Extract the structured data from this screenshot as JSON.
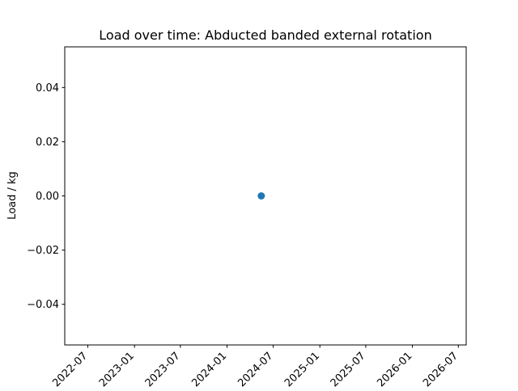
{
  "chart_data": {
    "type": "scatter",
    "title": "Load over time: Abducted banded external rotation",
    "xlabel": "",
    "ylabel": "Load / kg",
    "x_is_date": true,
    "xlim": [
      "2022-04-01",
      "2026-08-01"
    ],
    "ylim": [
      -0.055,
      0.055
    ],
    "x_ticks": [
      "2022-07",
      "2023-01",
      "2023-07",
      "2024-01",
      "2024-07",
      "2025-01",
      "2025-07",
      "2026-01",
      "2026-07"
    ],
    "y_ticks": [
      -0.04,
      -0.02,
      0.0,
      0.02,
      0.04
    ],
    "y_tick_labels": [
      "−0.04",
      "−0.02",
      "0.00",
      "0.02",
      "0.04"
    ],
    "grid": false,
    "series": [
      {
        "color": "#1f77b4",
        "points": [
          {
            "x": "2024-05-15",
            "y": 0.0
          }
        ]
      }
    ]
  }
}
